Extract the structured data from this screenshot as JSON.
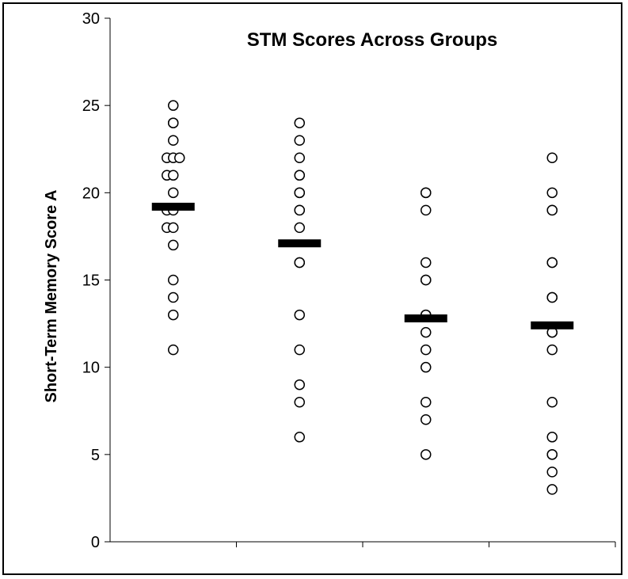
{
  "chart_data": {
    "type": "scatter",
    "title": "STM Scores Across Groups",
    "xlabel": "",
    "ylabel": "Short-Term Memory Score A",
    "ylim": [
      0,
      30
    ],
    "yticks": [
      0,
      5,
      10,
      15,
      20,
      25,
      30
    ],
    "grid": false,
    "legend": "none",
    "colors": {
      "marker_stroke": "#000000",
      "marker_fill": "#ffffff",
      "mean_bar": "#000000"
    },
    "groups": [
      {
        "mean": 19.2,
        "points": [
          25,
          24,
          24,
          23,
          22,
          22,
          22,
          21,
          21,
          20,
          19,
          19,
          18,
          18,
          17,
          15,
          14,
          13,
          11
        ],
        "offsets": [
          0,
          0,
          0,
          0,
          -1,
          0,
          1,
          -1,
          0,
          0,
          -1,
          0,
          -1,
          0,
          0,
          0,
          0,
          0,
          0
        ]
      },
      {
        "mean": 17.1,
        "points": [
          24,
          23,
          22,
          21,
          21,
          20,
          20,
          19,
          19,
          18,
          16,
          16,
          13,
          11,
          9,
          8,
          6
        ],
        "offsets": [
          0,
          0,
          0,
          0,
          0,
          0,
          0,
          0,
          0,
          0,
          0,
          0,
          0,
          0,
          0,
          0,
          0
        ]
      },
      {
        "mean": 12.8,
        "points": [
          20,
          20,
          19,
          16,
          15,
          15,
          13,
          13,
          12,
          11,
          10,
          8,
          7,
          5
        ],
        "offsets": [
          0,
          0,
          0,
          0,
          0,
          0,
          0,
          0,
          0,
          0,
          0,
          0,
          0,
          0
        ]
      },
      {
        "mean": 12.4,
        "points": [
          22,
          20,
          19,
          19,
          16,
          16,
          14,
          14,
          12,
          12,
          11,
          8,
          6,
          5,
          5,
          4,
          3
        ],
        "offsets": [
          0,
          0,
          0,
          0,
          0,
          0,
          0,
          0,
          0,
          0,
          0,
          0,
          0,
          0,
          0,
          0,
          0
        ]
      }
    ]
  }
}
